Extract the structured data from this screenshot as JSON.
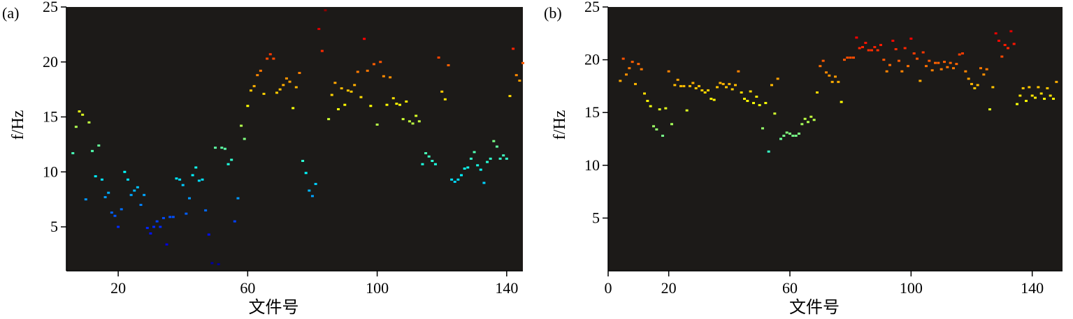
{
  "chart_data": [
    {
      "type": "scatter",
      "panel_label": "(a)",
      "ylabel": "f/Hz",
      "xlabel": "文件号",
      "xlim": [
        4,
        145
      ],
      "ylim": [
        1,
        25
      ],
      "xticks": [
        "20",
        "60",
        "100",
        "140"
      ],
      "yticks": [
        "5",
        "10",
        "15",
        "20",
        "25"
      ],
      "background": "#1c1a18",
      "colormap": "jet",
      "points": [
        [
          6,
          11.7
        ],
        [
          7,
          14.1
        ],
        [
          8,
          15.5
        ],
        [
          9,
          15.2
        ],
        [
          10,
          7.5
        ],
        [
          11,
          14.5
        ],
        [
          12,
          11.9
        ],
        [
          13,
          9.6
        ],
        [
          14,
          12.4
        ],
        [
          15,
          9.3
        ],
        [
          16,
          7.7
        ],
        [
          17,
          8.1
        ],
        [
          18,
          6.3
        ],
        [
          19,
          6.0
        ],
        [
          20,
          5.0
        ],
        [
          21,
          6.6
        ],
        [
          22,
          10.0
        ],
        [
          23,
          9.3
        ],
        [
          24,
          7.9
        ],
        [
          25,
          8.3
        ],
        [
          26,
          8.6
        ],
        [
          27,
          7.0
        ],
        [
          28,
          7.9
        ],
        [
          29,
          4.9
        ],
        [
          30,
          4.4
        ],
        [
          31,
          5.0
        ],
        [
          32,
          5.5
        ],
        [
          33,
          5.0
        ],
        [
          34,
          5.8
        ],
        [
          35,
          3.4
        ],
        [
          36,
          5.9
        ],
        [
          37,
          5.9
        ],
        [
          38,
          9.4
        ],
        [
          39,
          9.3
        ],
        [
          40,
          8.8
        ],
        [
          41,
          6.2
        ],
        [
          42,
          7.6
        ],
        [
          43,
          9.7
        ],
        [
          44,
          10.4
        ],
        [
          45,
          9.2
        ],
        [
          46,
          9.3
        ],
        [
          47,
          6.5
        ],
        [
          48,
          4.3
        ],
        [
          49,
          1.7
        ],
        [
          50,
          12.2
        ],
        [
          51,
          1.6
        ],
        [
          52,
          12.2
        ],
        [
          53,
          12.1
        ],
        [
          54,
          10.7
        ],
        [
          55,
          11.1
        ],
        [
          56,
          5.5
        ],
        [
          57,
          7.6
        ],
        [
          58,
          14.2
        ],
        [
          59,
          13.0
        ],
        [
          60,
          16.0
        ],
        [
          61,
          17.4
        ],
        [
          62,
          17.8
        ],
        [
          63,
          18.8
        ],
        [
          64,
          19.2
        ],
        [
          65,
          17.1
        ],
        [
          66,
          20.3
        ],
        [
          67,
          20.7
        ],
        [
          68,
          20.3
        ],
        [
          69,
          17.2
        ],
        [
          70,
          17.5
        ],
        [
          71,
          17.9
        ],
        [
          72,
          18.5
        ],
        [
          73,
          18.2
        ],
        [
          74,
          15.8
        ],
        [
          75,
          17.7
        ],
        [
          76,
          19.0
        ],
        [
          77,
          11.0
        ],
        [
          78,
          9.9
        ],
        [
          79,
          8.3
        ],
        [
          80,
          7.8
        ],
        [
          81,
          8.9
        ],
        [
          82,
          23.0
        ],
        [
          83,
          21.0
        ],
        [
          84,
          24.7
        ],
        [
          85,
          14.8
        ],
        [
          86,
          17.0
        ],
        [
          87,
          18.1
        ],
        [
          88,
          15.7
        ],
        [
          89,
          17.6
        ],
        [
          90,
          16.1
        ],
        [
          91,
          17.4
        ],
        [
          92,
          17.3
        ],
        [
          93,
          17.9
        ],
        [
          94,
          19.1
        ],
        [
          95,
          16.8
        ],
        [
          96,
          22.1
        ],
        [
          97,
          19.2
        ],
        [
          98,
          16.0
        ],
        [
          99,
          19.8
        ],
        [
          100,
          14.3
        ],
        [
          101,
          20.0
        ],
        [
          102,
          18.7
        ],
        [
          103,
          16.1
        ],
        [
          104,
          18.6
        ],
        [
          105,
          16.7
        ],
        [
          106,
          16.2
        ],
        [
          107,
          16.1
        ],
        [
          108,
          14.8
        ],
        [
          109,
          16.4
        ],
        [
          110,
          14.6
        ],
        [
          111,
          14.4
        ],
        [
          112,
          15.1
        ],
        [
          113,
          14.6
        ],
        [
          114,
          10.7
        ],
        [
          115,
          11.7
        ],
        [
          116,
          11.4
        ],
        [
          117,
          11.0
        ],
        [
          118,
          10.7
        ],
        [
          119,
          20.4
        ],
        [
          120,
          17.3
        ],
        [
          121,
          16.6
        ],
        [
          122,
          19.7
        ],
        [
          123,
          9.3
        ],
        [
          124,
          9.1
        ],
        [
          125,
          9.3
        ],
        [
          126,
          9.7
        ],
        [
          127,
          10.3
        ],
        [
          128,
          10.4
        ],
        [
          129,
          11.2
        ],
        [
          130,
          11.8
        ],
        [
          131,
          10.6
        ],
        [
          132,
          10.2
        ],
        [
          133,
          9.0
        ],
        [
          134,
          10.9
        ],
        [
          135,
          11.2
        ],
        [
          136,
          12.8
        ],
        [
          137,
          12.3
        ],
        [
          138,
          11.2
        ],
        [
          139,
          11.5
        ],
        [
          140,
          11.2
        ],
        [
          141,
          16.9
        ],
        [
          142,
          21.2
        ],
        [
          143,
          18.8
        ],
        [
          144,
          18.3
        ],
        [
          145,
          19.9
        ]
      ]
    },
    {
      "type": "scatter",
      "panel_label": "(b)",
      "ylabel": "f/Hz",
      "xlabel": "文件号",
      "xlim": [
        0,
        150
      ],
      "ylim": [
        0,
        25
      ],
      "xticks": [
        "0",
        "20",
        "60",
        "100",
        "140"
      ],
      "yticks": [
        "5",
        "10",
        "15",
        "20",
        "25"
      ],
      "background": "#1c1a18",
      "colormap": "jet",
      "points": [
        [
          4,
          18.0
        ],
        [
          5,
          20.1
        ],
        [
          6,
          18.6
        ],
        [
          7,
          19.2
        ],
        [
          8,
          19.8
        ],
        [
          9,
          17.7
        ],
        [
          10,
          19.6
        ],
        [
          11,
          19.1
        ],
        [
          12,
          16.8
        ],
        [
          13,
          16.1
        ],
        [
          14,
          15.6
        ],
        [
          15,
          13.7
        ],
        [
          16,
          13.4
        ],
        [
          17,
          15.3
        ],
        [
          18,
          12.8
        ],
        [
          19,
          15.4
        ],
        [
          20,
          18.9
        ],
        [
          21,
          13.9
        ],
        [
          22,
          17.6
        ],
        [
          23,
          18.1
        ],
        [
          24,
          17.5
        ],
        [
          25,
          17.5
        ],
        [
          26,
          15.2
        ],
        [
          27,
          17.5
        ],
        [
          28,
          17.8
        ],
        [
          29,
          17.3
        ],
        [
          30,
          17.5
        ],
        [
          31,
          17.1
        ],
        [
          32,
          16.9
        ],
        [
          33,
          17.1
        ],
        [
          34,
          16.3
        ],
        [
          35,
          16.2
        ],
        [
          36,
          17.4
        ],
        [
          37,
          17.8
        ],
        [
          38,
          17.7
        ],
        [
          39,
          17.4
        ],
        [
          40,
          17.7
        ],
        [
          41,
          17.2
        ],
        [
          42,
          17.6
        ],
        [
          43,
          18.9
        ],
        [
          44,
          16.9
        ],
        [
          45,
          16.3
        ],
        [
          46,
          16.1
        ],
        [
          47,
          17.0
        ],
        [
          48,
          15.9
        ],
        [
          49,
          16.5
        ],
        [
          50,
          15.7
        ],
        [
          51,
          13.5
        ],
        [
          52,
          15.9
        ],
        [
          53,
          11.3
        ],
        [
          54,
          17.6
        ],
        [
          55,
          14.9
        ],
        [
          56,
          18.2
        ],
        [
          57,
          12.5
        ],
        [
          58,
          12.8
        ],
        [
          59,
          13.1
        ],
        [
          60,
          13.0
        ],
        [
          61,
          12.8
        ],
        [
          62,
          12.8
        ],
        [
          63,
          13.0
        ],
        [
          64,
          13.9
        ],
        [
          65,
          14.4
        ],
        [
          66,
          14.1
        ],
        [
          67,
          14.6
        ],
        [
          68,
          14.3
        ],
        [
          69,
          16.9
        ],
        [
          70,
          19.4
        ],
        [
          71,
          19.9
        ],
        [
          72,
          18.8
        ],
        [
          73,
          18.5
        ],
        [
          74,
          17.9
        ],
        [
          75,
          18.4
        ],
        [
          76,
          17.9
        ],
        [
          77,
          16.0
        ],
        [
          78,
          20.0
        ],
        [
          79,
          20.2
        ],
        [
          80,
          20.2
        ],
        [
          81,
          20.2
        ],
        [
          82,
          22.1
        ],
        [
          83,
          21.1
        ],
        [
          84,
          21.2
        ],
        [
          85,
          21.6
        ],
        [
          86,
          20.9
        ],
        [
          87,
          20.9
        ],
        [
          88,
          21.2
        ],
        [
          89,
          20.9
        ],
        [
          90,
          21.4
        ],
        [
          91,
          20.0
        ],
        [
          92,
          18.9
        ],
        [
          93,
          19.5
        ],
        [
          94,
          21.8
        ],
        [
          95,
          21.0
        ],
        [
          96,
          19.9
        ],
        [
          97,
          18.9
        ],
        [
          98,
          21.1
        ],
        [
          99,
          19.4
        ],
        [
          100,
          22.0
        ],
        [
          101,
          20.6
        ],
        [
          102,
          20.1
        ],
        [
          103,
          18.0
        ],
        [
          104,
          20.7
        ],
        [
          105,
          19.4
        ],
        [
          106,
          19.9
        ],
        [
          107,
          19.0
        ],
        [
          108,
          19.7
        ],
        [
          109,
          19.7
        ],
        [
          110,
          19.1
        ],
        [
          111,
          19.8
        ],
        [
          112,
          19.3
        ],
        [
          113,
          19.7
        ],
        [
          114,
          19.2
        ],
        [
          115,
          19.6
        ],
        [
          116,
          20.5
        ],
        [
          117,
          20.6
        ],
        [
          118,
          18.9
        ],
        [
          119,
          18.2
        ],
        [
          120,
          17.7
        ],
        [
          121,
          17.3
        ],
        [
          122,
          17.6
        ],
        [
          123,
          19.2
        ],
        [
          124,
          18.6
        ],
        [
          125,
          19.1
        ],
        [
          126,
          15.3
        ],
        [
          127,
          17.4
        ],
        [
          128,
          22.5
        ],
        [
          129,
          21.8
        ],
        [
          130,
          20.3
        ],
        [
          131,
          21.4
        ],
        [
          132,
          21.1
        ],
        [
          133,
          22.7
        ],
        [
          134,
          21.5
        ],
        [
          135,
          15.8
        ],
        [
          136,
          16.6
        ],
        [
          137,
          17.3
        ],
        [
          138,
          16.1
        ],
        [
          139,
          17.4
        ],
        [
          140,
          16.6
        ],
        [
          141,
          16.4
        ],
        [
          142,
          17.4
        ],
        [
          143,
          16.8
        ],
        [
          144,
          16.3
        ],
        [
          145,
          17.3
        ],
        [
          146,
          16.6
        ],
        [
          147,
          16.3
        ],
        [
          148,
          17.9
        ]
      ]
    }
  ]
}
